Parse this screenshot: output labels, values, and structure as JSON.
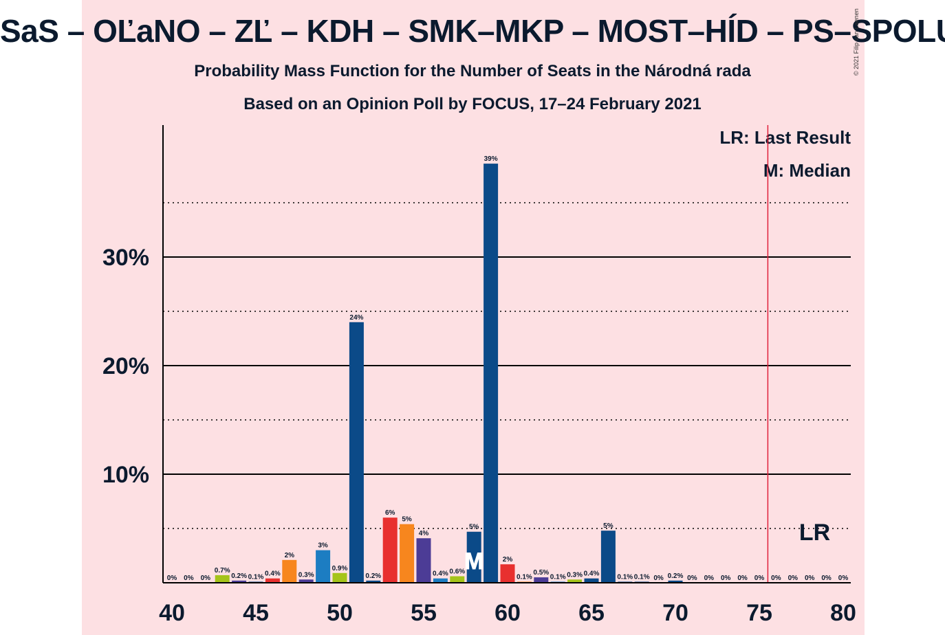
{
  "title": "SaS – OĽaNO – ZĽ – KDH – SMK–MKP – MOST–HÍD – PS–SPOLU",
  "subtitle1": "Probability Mass Function for the Number of Seats in the Národná rada",
  "subtitle2": "Based on an Opinion Poll by FOCUS, 17–24 February 2021",
  "copyright": "© 2021 Filip van Laenen",
  "legend": {
    "last_result": "LR: Last Result",
    "median": "M: Median"
  },
  "chart_data": {
    "type": "bar",
    "x": [
      40,
      41,
      42,
      43,
      44,
      45,
      46,
      47,
      48,
      49,
      50,
      51,
      52,
      53,
      54,
      55,
      56,
      57,
      58,
      59,
      60,
      61,
      62,
      63,
      64,
      65,
      66,
      67,
      68,
      69,
      70,
      71,
      72,
      73,
      74,
      75,
      76,
      77,
      78,
      79,
      80
    ],
    "values": [
      0,
      0,
      0,
      0.7,
      0.2,
      0.1,
      0.4,
      2.1,
      0.3,
      3.0,
      0.9,
      24.0,
      0.2,
      6.0,
      5.4,
      4.1,
      0.4,
      0.6,
      4.7,
      38.6,
      1.7,
      0.1,
      0.5,
      0.1,
      0.3,
      0.4,
      4.8,
      0.1,
      0.1,
      0,
      0.2,
      0,
      0,
      0,
      0,
      0,
      0,
      0,
      0,
      0,
      0
    ],
    "labels": [
      "0%",
      "0%",
      "0%",
      "0.7%",
      "0.2%",
      "0.1%",
      "0.4%",
      "2%",
      "0.3%",
      "3%",
      "0.9%",
      "24%",
      "0.2%",
      "6%",
      "5%",
      "4%",
      "0.4%",
      "0.6%",
      "5%",
      "39%",
      "2%",
      "0.1%",
      "0.5%",
      "0.1%",
      "0.3%",
      "0.4%",
      "5%",
      "0.1%",
      "0.1%",
      "0%",
      "0.2%",
      "0%",
      "0%",
      "0%",
      "0%",
      "0%",
      "0%",
      "0%",
      "0%",
      "0%",
      "0%"
    ],
    "colors": [
      "#0b4a88",
      "#0b4a88",
      "#0b4a88",
      "#a5c41a",
      "#4c3c96",
      "#0b4a88",
      "#e8302f",
      "#f7861e",
      "#4c3c96",
      "#1c7dc2",
      "#a5c41a",
      "#0b4a88",
      "#0b4a88",
      "#e8302f",
      "#f7861e",
      "#4c3c96",
      "#1c7dc2",
      "#a5c41a",
      "#0b4a88",
      "#0b4a88",
      "#e8302f",
      "#f7861e",
      "#4c3c96",
      "#1c7dc2",
      "#a5c41a",
      "#0b4a88",
      "#0b4a88",
      "#0b4a88",
      "#0b4a88",
      "#0b4a88",
      "#0b4a88",
      "#0b4a88",
      "#0b4a88",
      "#0b4a88",
      "#0b4a88",
      "#0b4a88",
      "#0b4a88",
      "#0b4a88",
      "#0b4a88",
      "#0b4a88",
      "#0b4a88"
    ],
    "xticks": [
      "40",
      "45",
      "50",
      "55",
      "60",
      "65",
      "70",
      "75",
      "80"
    ],
    "yticks": [
      "10%",
      "20%",
      "30%"
    ],
    "ylim": [
      0,
      42
    ],
    "median": 58,
    "median_label": "M",
    "last_result": 76,
    "last_result_label": "LR",
    "grid": true
  }
}
